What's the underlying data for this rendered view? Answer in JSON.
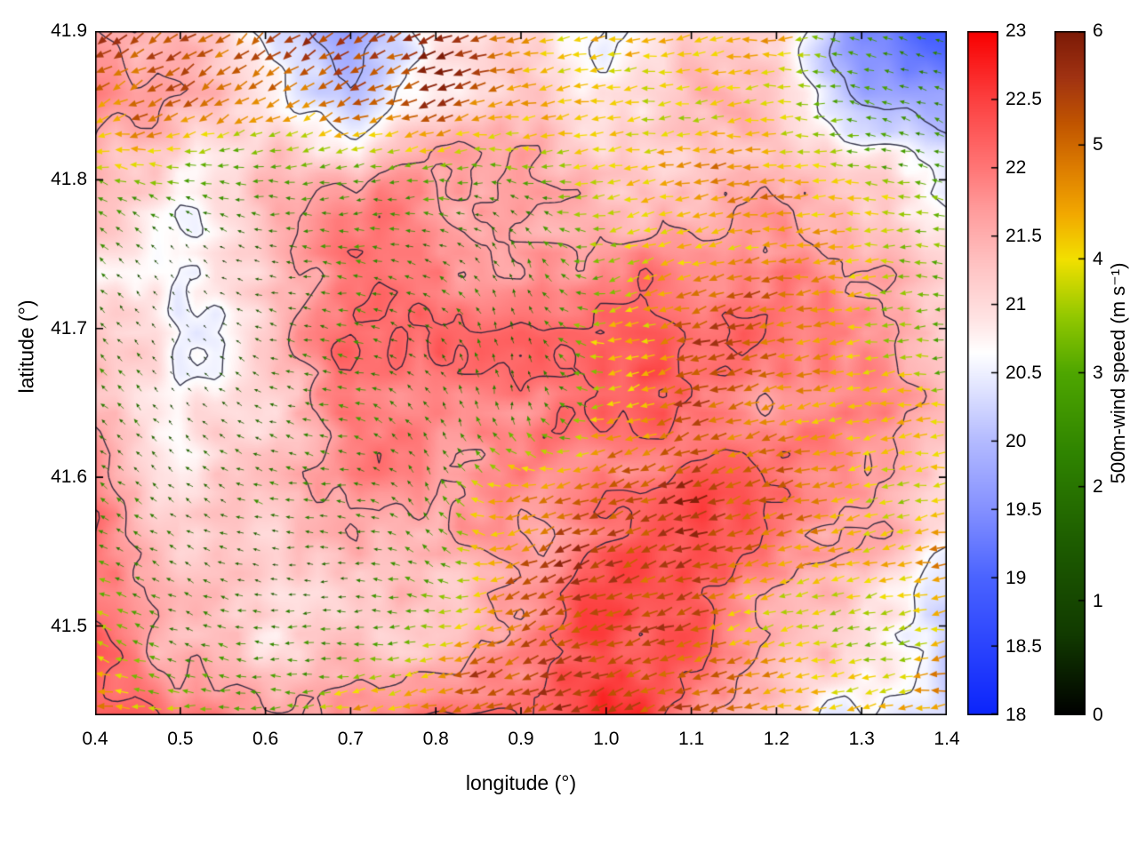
{
  "chart_data": {
    "type": "heatmap",
    "title": "",
    "xlabel": "longitude (°)",
    "ylabel": "latitude (°)",
    "x_range": [
      0.4,
      1.4
    ],
    "y_range": [
      41.44,
      41.9
    ],
    "x_ticks": [
      "0.4",
      "0.5",
      "0.6",
      "0.7",
      "0.8",
      "0.9",
      "1.0",
      "1.1",
      "1.2",
      "1.3",
      "1.4"
    ],
    "y_ticks": [
      "41.5",
      "41.6",
      "41.7",
      "41.8",
      "41.9"
    ],
    "grid": false,
    "legend_position": "none",
    "contour_levels": [
      20.0,
      20.6,
      21.6,
      22.1
    ],
    "contour_color": "#1c1c34",
    "background_field": {
      "name": "temperature",
      "lon": [
        0.4,
        0.5,
        0.6,
        0.7,
        0.8,
        0.9,
        1.0,
        1.1,
        1.2,
        1.3,
        1.4
      ],
      "lat": [
        41.9,
        41.85,
        41.8,
        41.75,
        41.7,
        41.65,
        41.6,
        41.55,
        41.5,
        41.44
      ],
      "values": [
        [
          21.8,
          21.5,
          20.3,
          19.8,
          20.8,
          21.0,
          20.5,
          21.0,
          21.2,
          19.5,
          19.0
        ],
        [
          21.8,
          21.3,
          20.8,
          20.4,
          21.2,
          21.4,
          21.0,
          21.3,
          21.3,
          20.2,
          19.8
        ],
        [
          21.5,
          20.8,
          21.3,
          21.6,
          21.8,
          21.8,
          21.5,
          21.6,
          21.7,
          21.3,
          20.8
        ],
        [
          21.0,
          20.5,
          21.2,
          21.8,
          22.0,
          21.9,
          21.8,
          21.9,
          22.0,
          21.6,
          21.0
        ],
        [
          21.2,
          20.4,
          21.0,
          22.2,
          22.3,
          22.0,
          21.9,
          22.0,
          22.1,
          21.8,
          21.4
        ],
        [
          21.5,
          20.6,
          21.0,
          22.0,
          22.2,
          21.8,
          22.0,
          22.2,
          22.0,
          21.8,
          21.5
        ],
        [
          21.8,
          20.8,
          21.4,
          21.8,
          21.6,
          21.8,
          22.2,
          22.3,
          22.0,
          21.6,
          21.2
        ],
        [
          22.0,
          21.0,
          21.2,
          21.5,
          21.3,
          21.8,
          22.3,
          22.4,
          21.8,
          21.4,
          20.8
        ],
        [
          22.2,
          21.4,
          21.0,
          21.2,
          21.5,
          22.0,
          22.4,
          22.2,
          21.6,
          20.8,
          20.4
        ],
        [
          22.4,
          21.8,
          21.4,
          21.6,
          22.0,
          22.3,
          22.4,
          22.0,
          21.4,
          20.6,
          20.5
        ]
      ]
    },
    "wind_field": {
      "name": "500m-wind",
      "speed": [
        [
          5.5,
          5.8,
          5.0,
          5.5,
          5.8,
          4.5,
          4.2,
          4.0,
          4.2,
          2.5,
          2.0
        ],
        [
          4.5,
          5.0,
          4.5,
          5.2,
          5.5,
          4.2,
          4.0,
          4.0,
          4.3,
          3.0,
          2.2
        ],
        [
          3.5,
          3.0,
          2.5,
          2.8,
          3.0,
          2.8,
          4.0,
          4.5,
          4.5,
          4.0,
          3.0
        ],
        [
          2.5,
          0.5,
          1.5,
          2.2,
          2.0,
          1.8,
          3.5,
          4.5,
          4.8,
          4.2,
          3.5
        ],
        [
          2.2,
          0.3,
          1.8,
          2.5,
          2.0,
          1.5,
          3.8,
          5.0,
          4.8,
          4.0,
          3.0
        ],
        [
          2.0,
          1.0,
          2.0,
          2.5,
          2.2,
          2.0,
          4.2,
          5.2,
          4.5,
          4.2,
          3.8
        ],
        [
          2.5,
          1.5,
          2.2,
          2.0,
          2.5,
          4.5,
          5.0,
          5.5,
          4.8,
          4.0,
          4.2
        ],
        [
          3.0,
          1.8,
          1.5,
          2.0,
          3.0,
          5.0,
          5.5,
          5.2,
          4.5,
          4.5,
          5.0
        ],
        [
          3.5,
          2.5,
          2.0,
          2.5,
          4.0,
          5.2,
          5.5,
          5.0,
          4.2,
          3.0,
          4.5
        ],
        [
          4.5,
          3.5,
          3.0,
          4.0,
          5.0,
          5.5,
          5.8,
          5.2,
          4.5,
          4.0,
          5.0
        ]
      ],
      "direction_deg": [
        [
          210,
          215,
          220,
          210,
          200,
          195,
          190,
          190,
          185,
          170,
          160
        ],
        [
          205,
          210,
          215,
          205,
          200,
          195,
          190,
          188,
          185,
          168,
          158
        ],
        [
          160,
          170,
          180,
          185,
          185,
          170,
          190,
          192,
          188,
          180,
          165
        ],
        [
          140,
          130,
          170,
          175,
          160,
          110,
          195,
          195,
          190,
          185,
          175
        ],
        [
          135,
          120,
          165,
          170,
          140,
          95,
          195,
          198,
          192,
          188,
          180
        ],
        [
          140,
          130,
          160,
          170,
          120,
          90,
          198,
          200,
          195,
          190,
          185
        ],
        [
          150,
          140,
          165,
          175,
          110,
          200,
          200,
          202,
          196,
          192,
          188
        ],
        [
          155,
          150,
          170,
          180,
          150,
          205,
          202,
          200,
          195,
          195,
          192
        ],
        [
          160,
          160,
          175,
          185,
          190,
          205,
          200,
          198,
          192,
          190,
          188
        ],
        [
          170,
          175,
          180,
          190,
          200,
          205,
          202,
          198,
          194,
          190,
          186
        ]
      ]
    },
    "colorbars": [
      {
        "name": "temperature",
        "label": "",
        "range": [
          18,
          23
        ],
        "tick_step": 0.5,
        "ticks": [
          "18",
          "18.5",
          "19",
          "19.5",
          "20",
          "20.5",
          "21",
          "21.5",
          "22",
          "22.5",
          "23"
        ],
        "stops": [
          [
            18,
            "#0b24fb"
          ],
          [
            19,
            "#4a63ff"
          ],
          [
            19.5,
            "#8490ff"
          ],
          [
            20,
            "#b3baff"
          ],
          [
            20.4,
            "#e2e5ff"
          ],
          [
            20.65,
            "#ffffff"
          ],
          [
            20.9,
            "#ffe3e3"
          ],
          [
            21.3,
            "#ffc2c2"
          ],
          [
            21.7,
            "#ff9b9b"
          ],
          [
            22,
            "#ff7676"
          ],
          [
            22.5,
            "#fc4040"
          ],
          [
            23,
            "#f80000"
          ]
        ]
      },
      {
        "name": "wind-speed",
        "label": "500m-wind speed (m s⁻¹)",
        "range": [
          0,
          6
        ],
        "tick_step": 1,
        "ticks": [
          "0",
          "1",
          "2",
          "3",
          "4",
          "5",
          "6"
        ],
        "stops": [
          [
            0,
            "#000000"
          ],
          [
            0.7,
            "#113a00"
          ],
          [
            1.5,
            "#1d5c00"
          ],
          [
            2.3,
            "#2f8400"
          ],
          [
            3,
            "#4ea600"
          ],
          [
            3.5,
            "#93c800"
          ],
          [
            4,
            "#f2e000"
          ],
          [
            4.4,
            "#f2a800"
          ],
          [
            4.8,
            "#dd7d00"
          ],
          [
            5.2,
            "#c05400"
          ],
          [
            5.6,
            "#a03212"
          ],
          [
            6,
            "#7c1a06"
          ]
        ]
      }
    ]
  }
}
